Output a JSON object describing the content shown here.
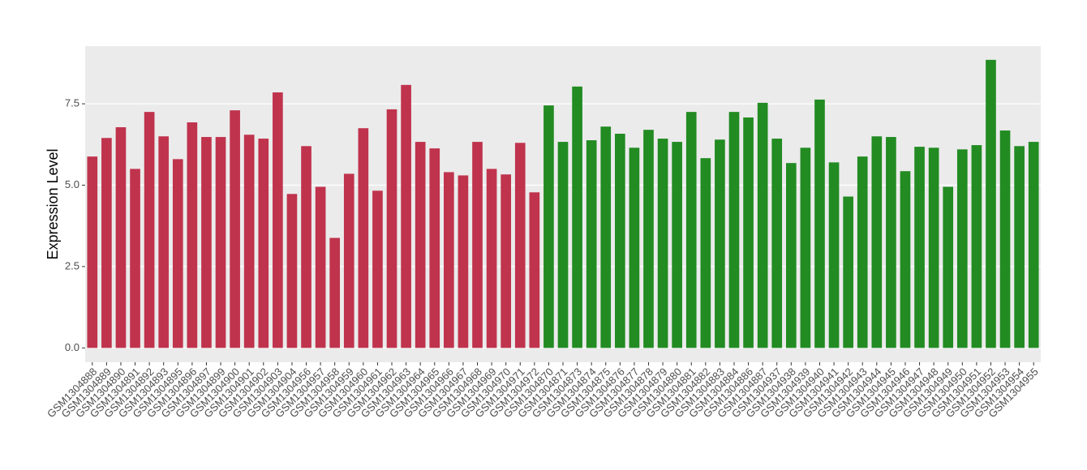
{
  "chart_data": {
    "type": "bar",
    "y_label": "Expression Level",
    "categories": [
      "GSM1304888",
      "GSM1304889",
      "GSM1304890",
      "GSM1304891",
      "GSM1304892",
      "GSM1304893",
      "GSM1304895",
      "GSM1304896",
      "GSM1304897",
      "GSM1304899",
      "GSM1304900",
      "GSM1304901",
      "GSM1304902",
      "GSM1304903",
      "GSM1304904",
      "GSM1304956",
      "GSM1304957",
      "GSM1304958",
      "GSM1304959",
      "GSM1304960",
      "GSM1304961",
      "GSM1304962",
      "GSM1304963",
      "GSM1304964",
      "GSM1304965",
      "GSM1304966",
      "GSM1304967",
      "GSM1304968",
      "GSM1304969",
      "GSM1304970",
      "GSM1304971",
      "GSM1304972",
      "GSM1304870",
      "GSM1304871",
      "GSM1304873",
      "GSM1304874",
      "GSM1304875",
      "GSM1304876",
      "GSM1304877",
      "GSM1304878",
      "GSM1304879",
      "GSM1304880",
      "GSM1304881",
      "GSM1304882",
      "GSM1304883",
      "GSM1304884",
      "GSM1304886",
      "GSM1304887",
      "GSM1304937",
      "GSM1304938",
      "GSM1304939",
      "GSM1304940",
      "GSM1304941",
      "GSM1304942",
      "GSM1304943",
      "GSM1304944",
      "GSM1304945",
      "GSM1304946",
      "GSM1304947",
      "GSM1304948",
      "GSM1304949",
      "GSM1304950",
      "GSM1304951",
      "GSM1304952",
      "GSM1304953",
      "GSM1304954",
      "GSM1304955"
    ],
    "values": [
      5.88,
      6.45,
      6.78,
      5.5,
      7.25,
      6.5,
      5.8,
      6.93,
      6.48,
      6.48,
      7.3,
      6.55,
      6.43,
      7.85,
      4.73,
      6.2,
      4.95,
      3.38,
      5.35,
      6.75,
      4.83,
      7.33,
      8.08,
      6.33,
      6.13,
      5.4,
      5.3,
      6.33,
      5.5,
      5.33,
      6.3,
      4.78,
      7.45,
      6.33,
      8.03,
      6.38,
      6.8,
      6.58,
      6.15,
      6.7,
      6.43,
      6.33,
      7.25,
      5.83,
      6.4,
      7.25,
      7.08,
      7.53,
      6.43,
      5.68,
      6.15,
      7.63,
      5.7,
      4.65,
      5.88,
      6.5,
      6.48,
      5.43,
      6.18,
      6.15,
      4.95,
      6.1,
      6.23,
      8.85,
      6.68,
      6.2,
      6.33
    ],
    "colors": [
      "#c0334d",
      "#c0334d",
      "#c0334d",
      "#c0334d",
      "#c0334d",
      "#c0334d",
      "#c0334d",
      "#c0334d",
      "#c0334d",
      "#c0334d",
      "#c0334d",
      "#c0334d",
      "#c0334d",
      "#c0334d",
      "#c0334d",
      "#c0334d",
      "#c0334d",
      "#c0334d",
      "#c0334d",
      "#c0334d",
      "#c0334d",
      "#c0334d",
      "#c0334d",
      "#c0334d",
      "#c0334d",
      "#c0334d",
      "#c0334d",
      "#c0334d",
      "#c0334d",
      "#c0334d",
      "#c0334d",
      "#c0334d",
      "#228b22",
      "#228b22",
      "#228b22",
      "#228b22",
      "#228b22",
      "#228b22",
      "#228b22",
      "#228b22",
      "#228b22",
      "#228b22",
      "#228b22",
      "#228b22",
      "#228b22",
      "#228b22",
      "#228b22",
      "#228b22",
      "#228b22",
      "#228b22",
      "#228b22",
      "#228b22",
      "#228b22",
      "#228b22",
      "#228b22",
      "#228b22",
      "#228b22",
      "#228b22",
      "#228b22",
      "#228b22",
      "#228b22",
      "#228b22",
      "#228b22",
      "#228b22",
      "#228b22",
      "#228b22",
      "#228b22"
    ],
    "ylim": [
      -0.44,
      9.27
    ],
    "yticks": [
      {
        "value": 0,
        "label": "0.0"
      },
      2.5,
      {
        "value": 5,
        "label": "5.0"
      },
      7.5
    ],
    "grid": true
  }
}
